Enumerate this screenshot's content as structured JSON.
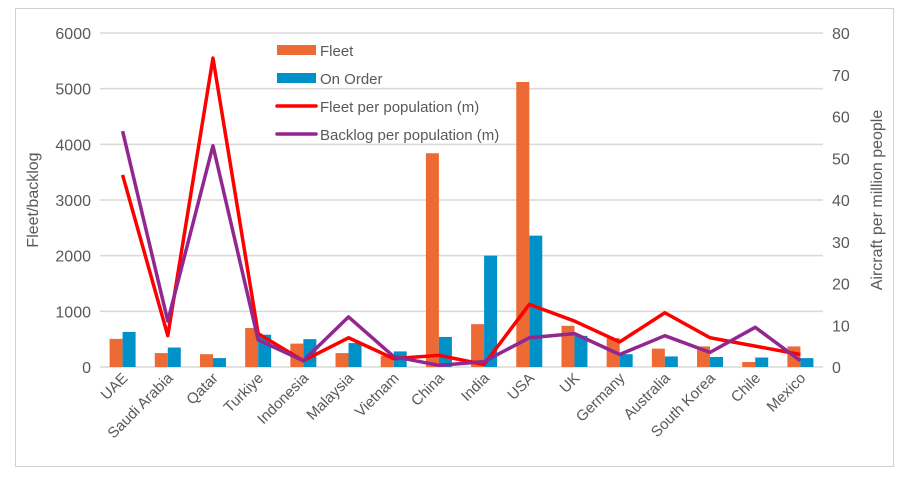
{
  "chart_data": {
    "type": "bar",
    "categories": [
      "UAE",
      "Saudi Arabia",
      "Qatar",
      "Turkiye",
      "Indonesia",
      "Malaysia",
      "Vietnam",
      "China",
      "India",
      "USA",
      "UK",
      "Germany",
      "Australia",
      "South Korea",
      "Chile",
      "Mexico"
    ],
    "series": [
      {
        "name": "Fleet",
        "type": "bar",
        "axis": "left",
        "color": "#ed6a34",
        "values": [
          505,
          250,
          230,
          700,
          420,
          250,
          200,
          3840,
          770,
          5120,
          740,
          520,
          330,
          370,
          90,
          370
        ]
      },
      {
        "name": "On Order",
        "type": "bar",
        "axis": "left",
        "color": "#0091c8",
        "values": [
          630,
          350,
          160,
          580,
          500,
          430,
          280,
          540,
          2000,
          2360,
          560,
          230,
          190,
          180,
          170,
          160
        ]
      },
      {
        "name": "Fleet per population (m)",
        "type": "line",
        "axis": "right",
        "color": "#ff0000",
        "values": [
          46,
          7.5,
          74,
          8,
          1.5,
          7,
          2,
          2.8,
          0.6,
          15,
          11,
          6,
          13,
          7,
          5,
          3
        ]
      },
      {
        "name": "Backlog per population (m)",
        "type": "line",
        "axis": "right",
        "color": "#92278f",
        "values": [
          56.5,
          11,
          53,
          6.5,
          1.5,
          12,
          2.5,
          0.4,
          1.3,
          7,
          8,
          3,
          7.5,
          3.5,
          9.5,
          1.5
        ]
      }
    ],
    "ylabel": "Fleet/backlog",
    "y2label": "Aircraft per million people",
    "ylim": [
      0,
      6000
    ],
    "yticks": [
      "0",
      "1000",
      "2000",
      "3000",
      "4000",
      "5000",
      "6000"
    ],
    "y2lim": [
      0,
      80
    ],
    "y2ticks": [
      "0",
      "10",
      "20",
      "30",
      "40",
      "50",
      "60",
      "70",
      "80"
    ],
    "grid": true,
    "legend": "top-center"
  }
}
